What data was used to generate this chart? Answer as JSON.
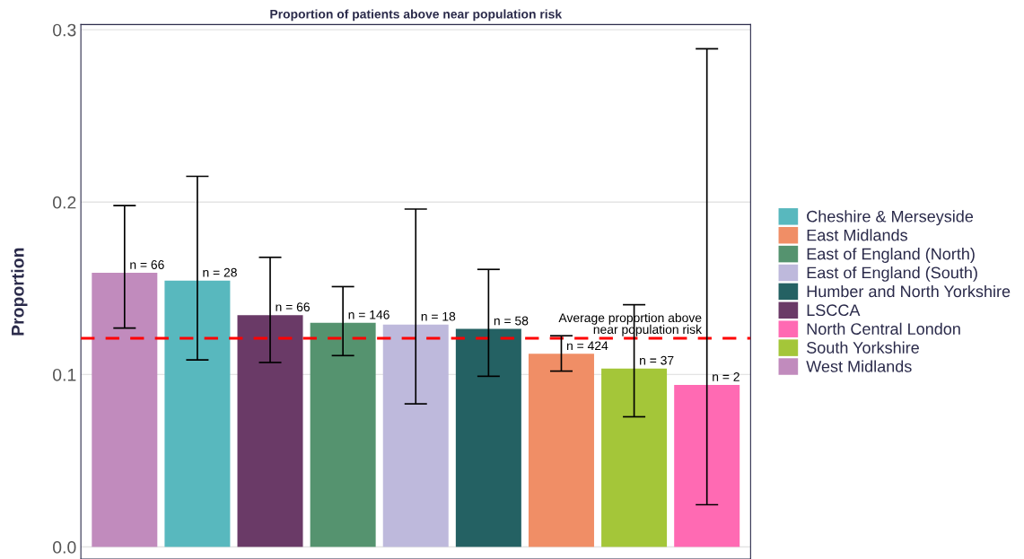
{
  "chart_data": {
    "type": "bar",
    "title": "Proportion of patients above near population risk",
    "ylabel": "Proportion",
    "categories": [
      null,
      null,
      null,
      null,
      null,
      null,
      null,
      null,
      null
    ],
    "series": [
      {
        "name": "Cheshire & Merseyside",
        "color": "#58b8be",
        "values": [
          null,
          0.1545,
          null,
          null,
          null,
          null,
          null,
          null,
          null
        ],
        "errors": [
          null,
          [
            0.1085,
            0.215
          ],
          null,
          null,
          null,
          null,
          null,
          null,
          null
        ]
      },
      {
        "name": "East Midlands",
        "color": "#f08e66",
        "values": [
          null,
          null,
          null,
          null,
          null,
          null,
          0.112,
          null,
          null
        ],
        "errors": [
          null,
          null,
          null,
          null,
          null,
          null,
          [
            0.102,
            0.1225
          ],
          null,
          null
        ]
      },
      {
        "name": "East of England (North)",
        "color": "#55936f",
        "values": [
          null,
          null,
          null,
          0.13,
          null,
          null,
          null,
          null,
          null
        ],
        "errors": [
          null,
          null,
          null,
          [
            0.111,
            0.151
          ],
          null,
          null,
          null,
          null,
          null
        ]
      },
      {
        "name": "East of England (South)",
        "color": "#beb9dc",
        "values": [
          null,
          null,
          null,
          null,
          0.129,
          null,
          null,
          null,
          null
        ],
        "errors": [
          null,
          null,
          null,
          null,
          [
            0.083,
            0.196
          ],
          null,
          null,
          null,
          null
        ]
      },
      {
        "name": "Humber and North Yorkshire",
        "color": "#246163",
        "values": [
          null,
          null,
          null,
          null,
          null,
          0.1265,
          null,
          null,
          null
        ],
        "errors": [
          null,
          null,
          null,
          null,
          null,
          [
            0.099,
            0.161
          ],
          null,
          null,
          null
        ]
      },
      {
        "name": "LSCCA",
        "color": "#6a3a67",
        "values": [
          null,
          null,
          0.1345,
          null,
          null,
          null,
          null,
          null,
          null
        ],
        "errors": [
          null,
          null,
          [
            0.107,
            0.168
          ],
          null,
          null,
          null,
          null,
          null,
          null
        ]
      },
      {
        "name": "North Central London",
        "color": "#ff6ab3",
        "values": [
          null,
          null,
          null,
          null,
          null,
          null,
          null,
          null,
          0.094
        ],
        "errors": [
          null,
          null,
          null,
          null,
          null,
          null,
          null,
          null,
          [
            0.0245,
            0.289
          ]
        ]
      },
      {
        "name": "South Yorkshire",
        "color": "#a4c639",
        "values": [
          null,
          null,
          null,
          null,
          null,
          null,
          null,
          0.1035,
          null
        ],
        "errors": [
          null,
          null,
          null,
          null,
          null,
          null,
          null,
          [
            0.0755,
            0.1405
          ],
          null
        ]
      },
      {
        "name": "West Midlands",
        "color": "#c18bbd",
        "values": [
          0.159,
          null,
          null,
          null,
          null,
          null,
          null,
          null,
          null
        ],
        "errors": [
          [
            0.127,
            0.198
          ],
          null,
          null,
          null,
          null,
          null,
          null,
          null,
          null
        ]
      }
    ],
    "annotations": [
      {
        "text": "n = 66",
        "y": 0.159
      },
      {
        "text": "n = 28",
        "y": 0.1545
      },
      {
        "text": "n = 66",
        "y": 0.1345
      },
      {
        "text": "n = 146",
        "y": 0.13
      },
      {
        "text": "n = 18",
        "y": 0.129
      },
      {
        "text": "n = 58",
        "y": 0.1265
      },
      {
        "text": "n = 424",
        "y": 0.112
      },
      {
        "text": "n = 37",
        "y": 0.1035
      },
      {
        "text": "n = 2",
        "y": 0.094
      }
    ],
    "ylim": [
      -0.007,
      0.303
    ],
    "yticks": [
      {
        "value": 0,
        "label": "0.0"
      },
      0.1,
      0.2,
      0.3
    ],
    "ref_lines": [
      {
        "axis": "y",
        "value": 0.121,
        "label": "Average proportion above\nnear population risk",
        "color": "#ff0000",
        "line_style": "dashed"
      }
    ],
    "grid": "y",
    "legend": "right"
  }
}
